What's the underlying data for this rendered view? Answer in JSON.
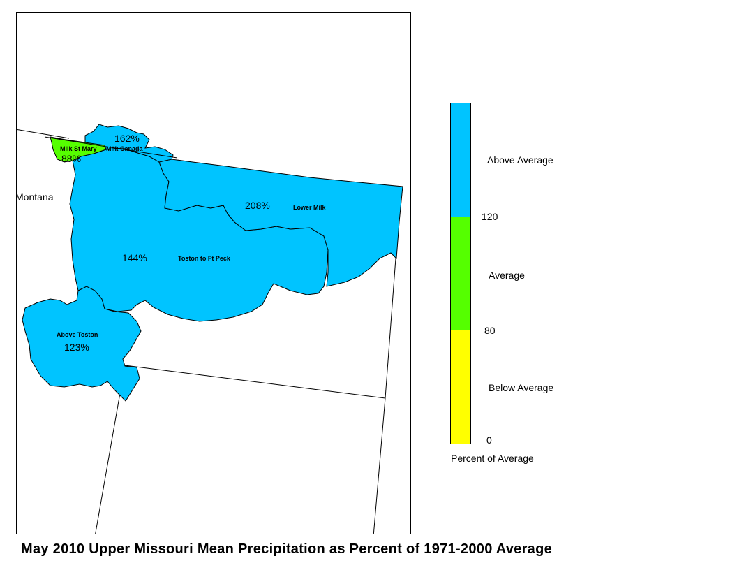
{
  "title": "May 2010 Upper Missouri Mean Precipitation as Percent of 1971-2000 Average",
  "map": {
    "state_label": "Montana",
    "regions": [
      {
        "name": "Milk St Mary",
        "percent": "88%",
        "category": "Average"
      },
      {
        "name": "Milk Canada",
        "percent": "162%",
        "category": "Above Average"
      },
      {
        "name": "Lower Milk",
        "percent": "208%",
        "category": "Above Average"
      },
      {
        "name": "Toston to Ft Peck",
        "percent": "144%",
        "category": "Above Average"
      },
      {
        "name": "Above Toston",
        "percent": "123%",
        "category": "Above Average"
      }
    ]
  },
  "legend": {
    "title": "Percent of Average",
    "categories": [
      {
        "label": "Above Average",
        "color": "#00c4ff",
        "min": 120,
        "max": null
      },
      {
        "label": "Average",
        "color": "#55ff00",
        "min": 80,
        "max": 120
      },
      {
        "label": "Below Average",
        "color": "#ffff00",
        "min": 0,
        "max": 80
      }
    ],
    "breaks": [
      "120",
      "80",
      "0"
    ]
  }
}
